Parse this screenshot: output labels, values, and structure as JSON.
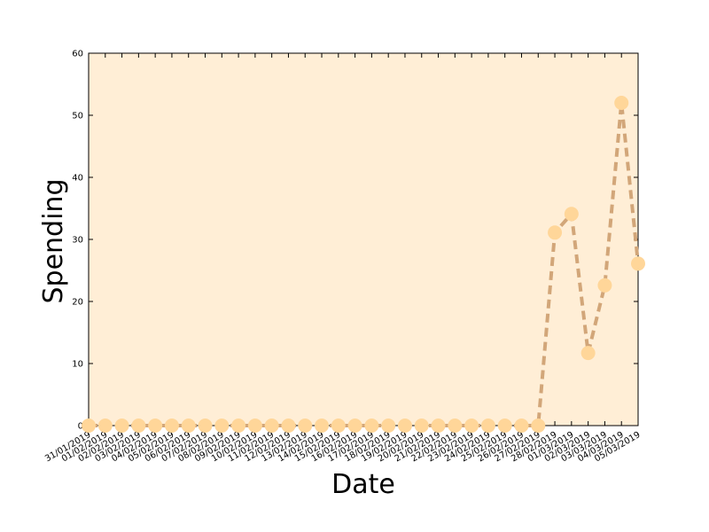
{
  "chart_data": {
    "type": "line",
    "xlabel": "Date",
    "ylabel": "Spending",
    "categories": [
      "31/01/2019",
      "01/02/2019",
      "02/02/2019",
      "03/02/2019",
      "04/02/2019",
      "05/02/2019",
      "06/02/2019",
      "07/02/2019",
      "08/02/2019",
      "09/02/2019",
      "10/02/2019",
      "11/02/2019",
      "12/02/2019",
      "13/02/2019",
      "14/02/2019",
      "15/02/2019",
      "16/02/2019",
      "17/02/2019",
      "18/02/2019",
      "19/02/2019",
      "20/02/2019",
      "21/02/2019",
      "22/02/2019",
      "23/02/2019",
      "24/02/2019",
      "25/02/2019",
      "26/02/2019",
      "27/02/2019",
      "28/02/2019",
      "01/03/2019",
      "02/03/2019",
      "03/03/2019",
      "04/03/2019",
      "05/03/2019"
    ],
    "values": [
      0,
      0,
      0,
      0,
      0,
      0,
      0,
      0,
      0,
      0,
      0,
      0,
      0,
      0,
      0,
      0,
      0,
      0,
      0,
      0,
      0,
      0,
      0,
      0,
      0,
      0,
      0,
      0,
      31.1,
      34.1,
      11.7,
      22.6,
      52,
      26.1
    ],
    "line_color": "#d2a679",
    "marker_color": "#ffd699",
    "background": "#ffeed6",
    "ylim": [
      0,
      60
    ],
    "yticks": [
      0,
      10,
      20,
      30,
      40,
      50,
      60
    ]
  }
}
